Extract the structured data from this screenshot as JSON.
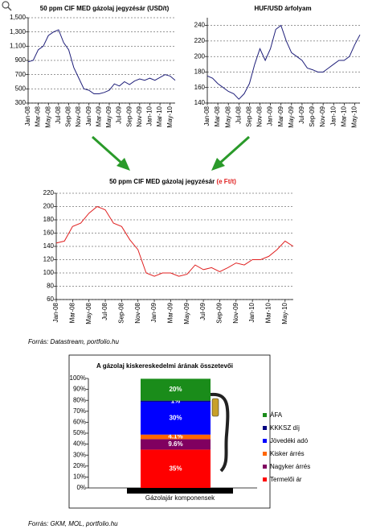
{
  "chart_data": [
    {
      "type": "line",
      "title": "50 ppm CIF MED gázolaj jegyzésár (USD/t)",
      "color": "#1f1f7a",
      "grid": true,
      "categories": [
        "Jan-08",
        null,
        "Mar-08",
        null,
        "May-08",
        null,
        "Jul-08",
        null,
        "Sep-08",
        null,
        "Nov-08",
        null,
        "Jan-09",
        null,
        "Mar-09",
        null,
        "May-09",
        null,
        "Jul-09",
        null,
        "Sep-09",
        null,
        "Nov-09",
        null,
        "Jan-10",
        null,
        "Mar-10",
        null,
        "May-10",
        null
      ],
      "values": [
        880,
        900,
        1050,
        1100,
        1250,
        1300,
        1330,
        1150,
        1050,
        800,
        650,
        500,
        480,
        430,
        430,
        450,
        480,
        570,
        540,
        600,
        560,
        610,
        640,
        620,
        650,
        620,
        660,
        700,
        680,
        620
      ],
      "ylim": [
        300,
        1500
      ],
      "yticks": [
        300,
        500,
        700,
        900,
        {
          "value": 1100,
          "label": "1,100"
        },
        {
          "value": 1300,
          "label": "1,300"
        },
        {
          "value": 1500,
          "label": "1,500"
        }
      ]
    },
    {
      "type": "line",
      "title": "HUF/USD árfolyam",
      "color": "#1f1f7a",
      "grid": true,
      "categories": [
        "Jan-08",
        null,
        "Mar-08",
        null,
        "May-08",
        null,
        "Jul-08",
        null,
        "Sep-08",
        null,
        "Nov-08",
        null,
        "Jan-09",
        null,
        "Mar-09",
        null,
        "May-09",
        null,
        "Jul-09",
        null,
        "Sep-09",
        null,
        "Nov-09",
        null,
        "Jan-10",
        null,
        "Mar-10",
        null,
        "May-10",
        null
      ],
      "values": [
        175,
        172,
        165,
        160,
        155,
        152,
        145,
        152,
        165,
        190,
        210,
        195,
        210,
        235,
        240,
        220,
        205,
        200,
        195,
        185,
        183,
        180,
        180,
        185,
        190,
        195,
        195,
        200,
        215,
        228
      ],
      "ylim": [
        140,
        250
      ],
      "yticks": [
        140,
        160,
        180,
        200,
        220,
        240
      ]
    },
    {
      "type": "line",
      "title": "50 ppm CIF MED gázolaj jegyzésár",
      "title_unit": "(e Ft/t)",
      "color": "#e02020",
      "grid": true,
      "categories": [
        "Jan-08",
        null,
        "Mar-08",
        null,
        "May-08",
        null,
        "Jul-08",
        null,
        "Sep-08",
        null,
        "Nov-08",
        null,
        "Jan-09",
        null,
        "Mar-09",
        null,
        "May-09",
        null,
        "Jul-09",
        null,
        "Sep-09",
        null,
        "Nov-09",
        null,
        "Jan-10",
        null,
        "Mar-10",
        null,
        "May-10",
        null
      ],
      "values": [
        145,
        148,
        170,
        175,
        190,
        200,
        195,
        175,
        170,
        150,
        135,
        100,
        95,
        100,
        100,
        95,
        98,
        112,
        105,
        108,
        102,
        108,
        115,
        112,
        120,
        120,
        125,
        135,
        148,
        140
      ],
      "ylim": [
        60,
        220
      ],
      "yticks": [
        60,
        80,
        100,
        120,
        140,
        160,
        180,
        200,
        220
      ],
      "source": "Forrás: Datastream, portfolio.hu"
    },
    {
      "type": "bar",
      "stacked": true,
      "title": "A gázolaj kiskereskedelmi árának összetevői",
      "grid": false,
      "legend": "right",
      "categories": [
        "Gázolajár komponensek"
      ],
      "series": [
        {
          "name": "Termelői ár",
          "color": "#ff0000",
          "values": [
            35
          ],
          "value_labels": [
            "35%"
          ]
        },
        {
          "name": "Nagyker árrés",
          "color": "#800060",
          "values": [
            9.6
          ],
          "value_labels": [
            "9.6%"
          ]
        },
        {
          "name": "Kisker árrés",
          "color": "#ff6600",
          "values": [
            4.1
          ],
          "value_labels": [
            "4.1%"
          ]
        },
        {
          "name": "Jövedéki adó",
          "color": "#0000ff",
          "values": [
            30
          ],
          "value_labels": [
            "30%"
          ]
        },
        {
          "name": "KKKSZ díj",
          "color": "#000080",
          "values": [
            1
          ],
          "value_labels": [
            "1%"
          ]
        },
        {
          "name": "ÁFA",
          "color": "#1a8c1a",
          "values": [
            20
          ],
          "value_labels": [
            "20%"
          ]
        }
      ],
      "ylim": [
        0,
        100
      ],
      "yticks": [
        {
          "value": 0,
          "label": "0%"
        },
        {
          "value": 10,
          "label": "10%"
        },
        {
          "value": 20,
          "label": "20%"
        },
        {
          "value": 30,
          "label": "30%"
        },
        {
          "value": 40,
          "label": "40%"
        },
        {
          "value": 50,
          "label": "50%"
        },
        {
          "value": 60,
          "label": "60%"
        },
        {
          "value": 70,
          "label": "70%"
        },
        {
          "value": 80,
          "label": "80%"
        },
        {
          "value": 90,
          "label": "90%"
        },
        {
          "value": 100,
          "label": "100%"
        }
      ],
      "source": "Forrás: GKM, MOL, portfolio.hu"
    }
  ]
}
